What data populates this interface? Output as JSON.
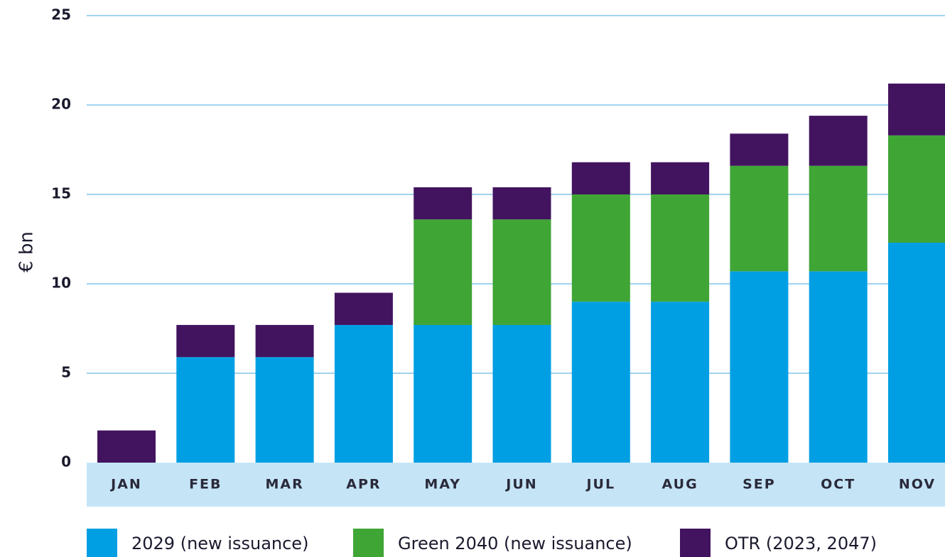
{
  "chart_data": {
    "type": "stacked_bar",
    "y_label": "€ bn",
    "categories": [
      "JAN",
      "FEB",
      "MAR",
      "APR",
      "MAY",
      "JUN",
      "JUL",
      "AUG",
      "SEP",
      "OCT",
      "NOV"
    ],
    "series": [
      {
        "name": "2029 (new issuance)",
        "color": "#009fe3",
        "values": [
          0,
          5.9,
          5.9,
          7.7,
          7.7,
          7.7,
          9.0,
          9.0,
          10.7,
          10.7,
          12.3
        ]
      },
      {
        "name": "Green 2040 (new issuance)",
        "color": "#3fa535",
        "values": [
          0,
          0,
          0,
          0,
          5.9,
          5.9,
          6.0,
          6.0,
          5.9,
          5.9,
          6.0
        ]
      },
      {
        "name": "OTR (2023, 2047)",
        "color": "#42145f",
        "values": [
          1.8,
          1.8,
          1.8,
          1.8,
          1.8,
          1.8,
          1.8,
          1.8,
          1.8,
          2.8,
          2.9
        ]
      }
    ],
    "ylim": [
      0,
      25
    ],
    "yticks": [
      0,
      5,
      10,
      15,
      20,
      25
    ],
    "grid": true
  }
}
